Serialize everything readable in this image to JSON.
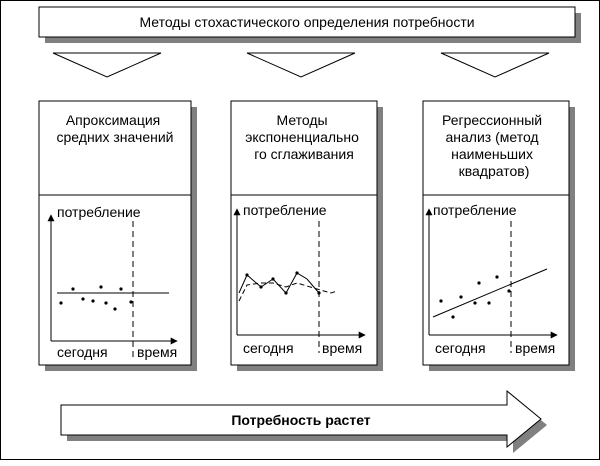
{
  "header": {
    "title": "Методы стохастического определения потребности"
  },
  "cards": [
    {
      "title_lines": [
        "Апроксимация",
        "средних значений"
      ],
      "y_label": "потребление",
      "x_label_left": "сегодня",
      "x_label_right": "время"
    },
    {
      "title_lines": [
        "Методы",
        "экспоненциально",
        "го сглаживания"
      ],
      "y_label": "потребление",
      "x_label_left": "сегодня",
      "x_label_right": "время"
    },
    {
      "title_lines": [
        "Регрессионный",
        "анализ (метод",
        "наименьших",
        "квадратов)"
      ],
      "y_label": "потребление",
      "x_label_left": "сегодня",
      "x_label_right": "время"
    }
  ],
  "bottom_arrow": {
    "label": "Потребность растет"
  }
}
